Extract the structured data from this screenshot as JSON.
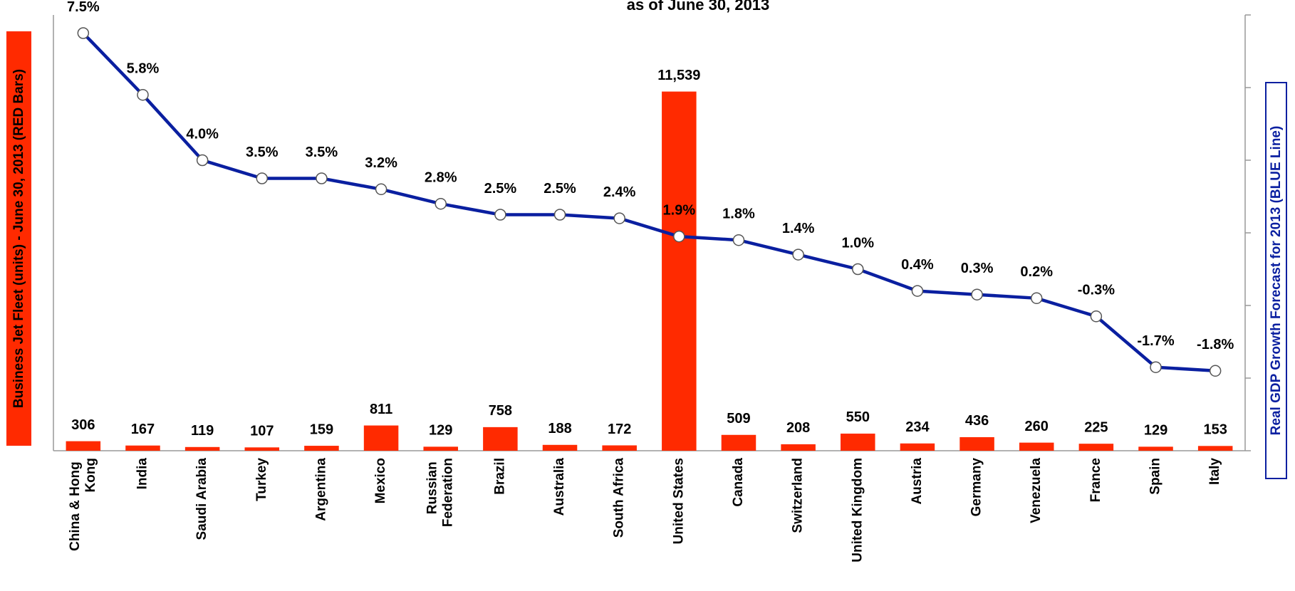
{
  "chart_data": {
    "type": "bar_line",
    "title": "as of June 30, 2013",
    "y_label": "Business Jet Fleet (units) - June 30, 2013 (RED Bars)",
    "y2_label": "Real GDP Growth Forecast for 2013 (BLUE Line)",
    "categories": [
      "China & Hong Kong",
      "India",
      "Saudi Arabia",
      "Turkey",
      "Argentina",
      "Mexico",
      "Russian Federation",
      "Brazil",
      "Australia",
      "South Africa",
      "United States",
      "Canada",
      "Switzerland",
      "United Kingdom",
      "Austria",
      "Germany",
      "Venezuela",
      "France",
      "Spain",
      "Italy"
    ],
    "series": [
      {
        "name": "Business Jet Fleet",
        "color": "#ff2a00",
        "type": "bar",
        "values": [
          306,
          167,
          119,
          107,
          159,
          811,
          129,
          758,
          188,
          172,
          11539,
          509,
          208,
          550,
          234,
          436,
          260,
          225,
          129,
          153
        ],
        "value_labels": [
          "306",
          "167",
          "119",
          "107",
          "159",
          "811",
          "129",
          "758",
          "188",
          "172",
          "11,539",
          "509",
          "208",
          "550",
          "234",
          "436",
          "260",
          "225",
          "129",
          "153"
        ]
      },
      {
        "name": "Real GDP Growth Forecast",
        "color": "#0a1fa0",
        "type": "line",
        "axis": "y2",
        "values": [
          7.5,
          5.8,
          4.0,
          3.5,
          3.5,
          3.2,
          2.8,
          2.5,
          2.5,
          2.4,
          1.9,
          1.8,
          1.4,
          1.0,
          0.4,
          0.3,
          0.2,
          -0.3,
          -1.7,
          -1.8
        ],
        "value_labels": [
          "7.5%",
          "5.8%",
          "4.0%",
          "3.5%",
          "3.5%",
          "3.2%",
          "2.8%",
          "2.5%",
          "2.5%",
          "2.4%",
          "1.9%",
          "1.8%",
          "1.4%",
          "1.0%",
          "0.4%",
          "0.3%",
          "0.2%",
          "-0.3%",
          "-1.7%",
          "-1.8%"
        ]
      }
    ],
    "ylim": [
      0,
      14000
    ],
    "y2lim": [
      -4,
      8
    ],
    "y2ticks": [
      -4,
      -2,
      0,
      2,
      4,
      6,
      8
    ]
  }
}
